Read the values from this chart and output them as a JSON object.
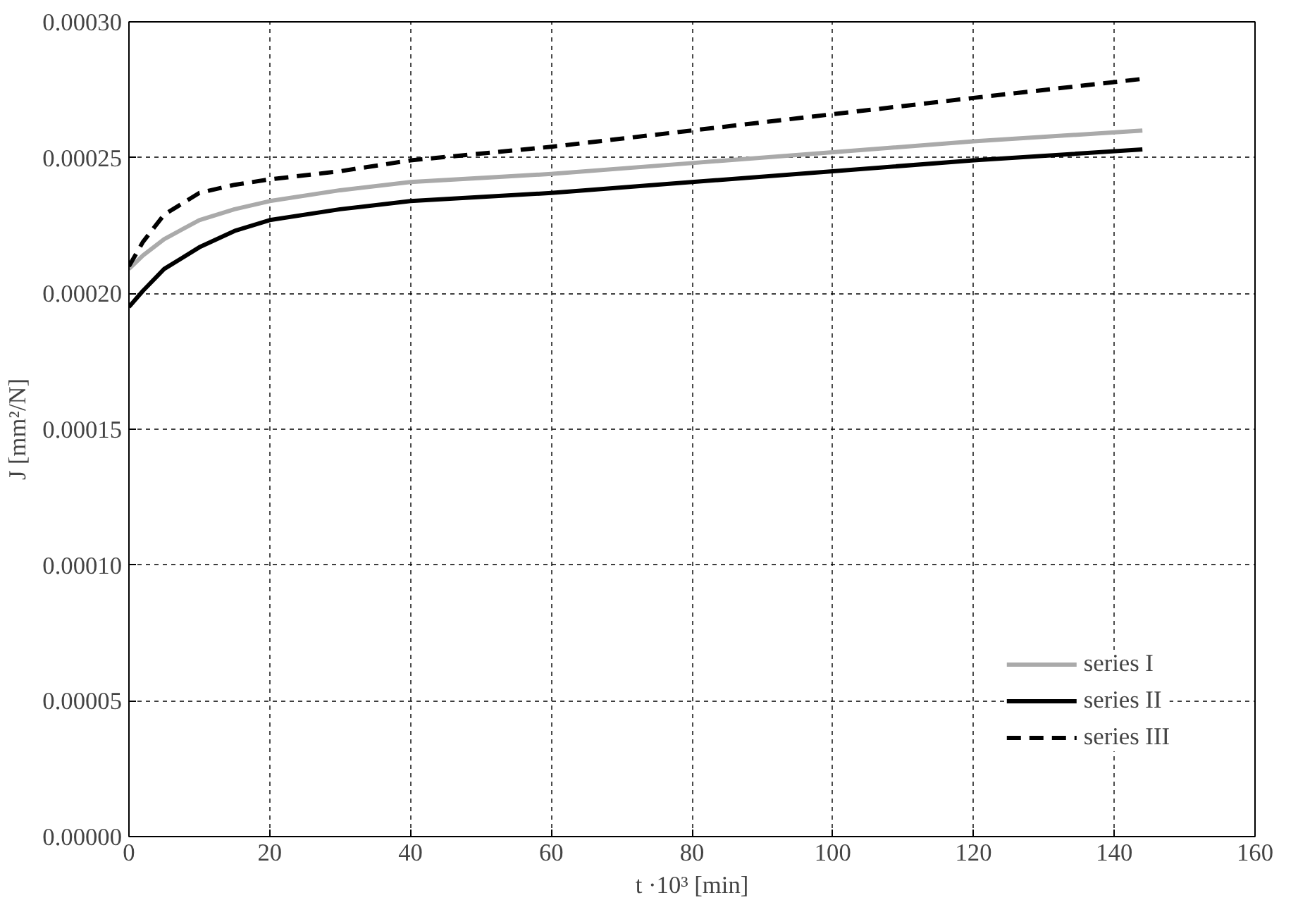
{
  "chart_data": {
    "type": "line",
    "xlabel": "t ·10³ [min]",
    "ylabel": "J [mm²/N]",
    "x": [
      0,
      2,
      5,
      10,
      15,
      20,
      30,
      40,
      60,
      80,
      100,
      120,
      144
    ],
    "series": [
      {
        "name": "series I",
        "color": "#aaaaaa",
        "line_style": "solid",
        "values": [
          0.000209,
          0.000214,
          0.00022,
          0.000227,
          0.000231,
          0.000234,
          0.000238,
          0.000241,
          0.000244,
          0.000248,
          0.000252,
          0.000256,
          0.00026
        ]
      },
      {
        "name": "series II",
        "color": "#000000",
        "line_style": "solid",
        "values": [
          0.000195,
          0.000201,
          0.000209,
          0.000217,
          0.000223,
          0.000227,
          0.000231,
          0.000234,
          0.000237,
          0.000241,
          0.000245,
          0.000249,
          0.000253
        ]
      },
      {
        "name": "series III",
        "color": "#000000",
        "line_style": "dashed",
        "values": [
          0.00021,
          0.000219,
          0.000229,
          0.000237,
          0.00024,
          0.000242,
          0.000245,
          0.000249,
          0.000254,
          0.00026,
          0.000266,
          0.000272,
          0.000279
        ]
      }
    ],
    "xlim": [
      0,
      160
    ],
    "xticks": [
      0,
      20,
      40,
      60,
      80,
      100,
      120,
      140,
      160
    ],
    "ylim": [
      0,
      0.0003
    ],
    "yticks": [
      {
        "value": 0,
        "label": "0.00000"
      },
      {
        "value": 5e-05,
        "label": "0.00005"
      },
      {
        "value": 0.0001,
        "label": "0.00010"
      },
      {
        "value": 0.00015,
        "label": "0.00015"
      },
      {
        "value": 0.0002,
        "label": "0.00020"
      },
      {
        "value": 0.00025,
        "label": "0.00025"
      },
      {
        "value": 0.0003,
        "label": "0.00030"
      }
    ],
    "grid": true,
    "legend": "bottom right"
  }
}
